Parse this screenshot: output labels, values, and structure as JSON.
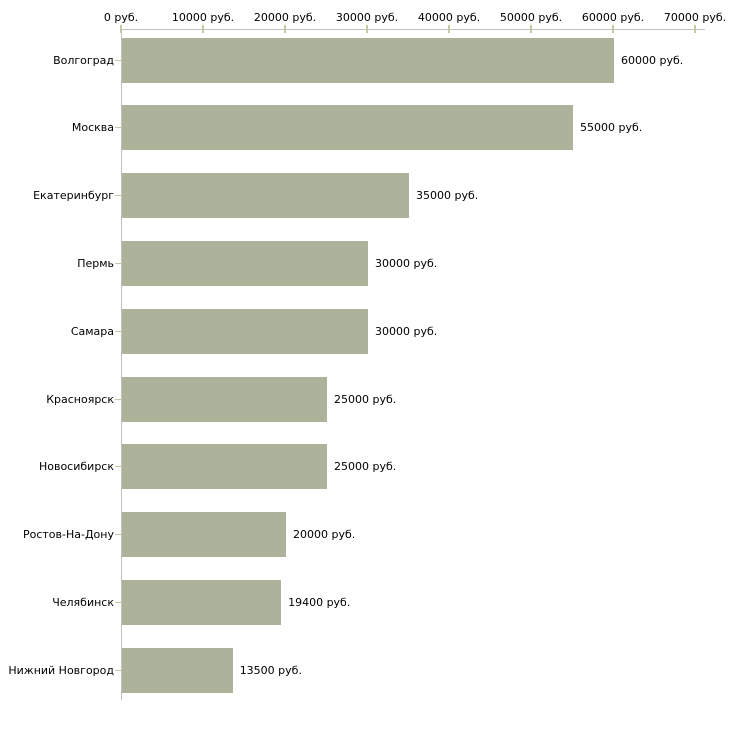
{
  "chart_data": {
    "type": "bar",
    "orientation": "horizontal",
    "title": "",
    "categories": [
      "Волгоград",
      "Москва",
      "Екатеринбург",
      "Пермь",
      "Самара",
      "Красноярск",
      "Новосибирск",
      "Ростов-На-Дону",
      "Челябинск",
      "Нижний Новгород"
    ],
    "values": [
      60000,
      55000,
      35000,
      30000,
      30000,
      25000,
      25000,
      20000,
      19400,
      13500
    ],
    "value_labels": [
      "60000 руб.",
      "55000 руб.",
      "35000 руб.",
      "30000 руб.",
      "30000 руб.",
      "25000 руб.",
      "25000 руб.",
      "20000 руб.",
      "19400 руб.",
      "13500 руб."
    ],
    "x_axis": {
      "min": 0,
      "max": 70000,
      "tick_interval": 10000,
      "position": "top",
      "tick_labels": [
        "0 руб.",
        "10000 руб.",
        "20000 руб.",
        "30000 руб.",
        "40000 руб.",
        "50000 руб.",
        "60000 руб.",
        "70000 руб."
      ]
    },
    "ylabel": "",
    "xlabel": "",
    "legend": "none",
    "grid": "off",
    "colors": {
      "bar": "#adb39a",
      "axis_line": "#c0c0c0",
      "tick_mark": "#c9c99f",
      "label_text": "#000000",
      "background": "#ffffff"
    }
  }
}
